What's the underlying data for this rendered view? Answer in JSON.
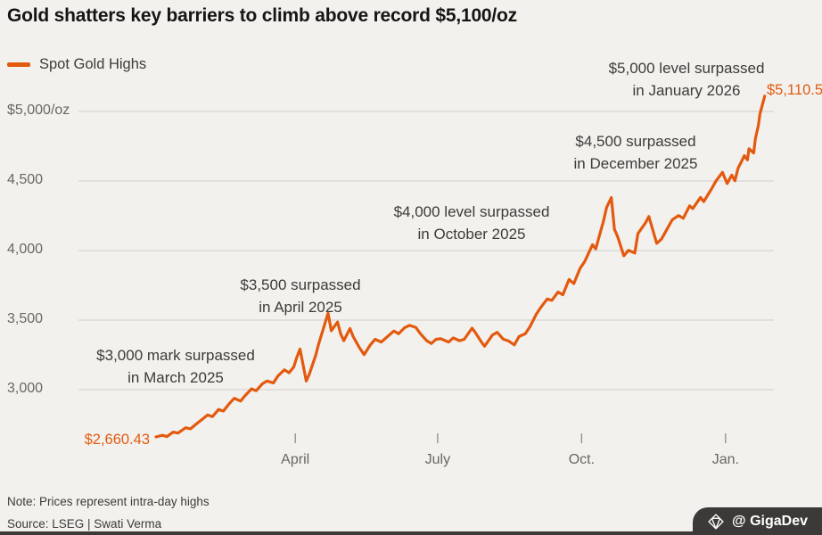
{
  "title": "Gold shatters key barriers to climb above record $5,100/oz",
  "legend": {
    "label": "Spot Gold Highs"
  },
  "colors": {
    "line": "#e35a0f",
    "grid": "#d8d6d2",
    "bg": "#f2f1ee",
    "axis_text": "#696763",
    "annotation_text": "#3d3b38",
    "footer_bg": "#3b3a38",
    "footer_text": "#ffffff"
  },
  "annotations": {
    "start_value": "$2,660.43",
    "end_value": "$5,110.5",
    "milestones": [
      {
        "line1": "$3,000 mark surpassed",
        "line2": "in March 2025"
      },
      {
        "line1": "$3,500 surpassed",
        "line2": "in April 2025"
      },
      {
        "line1": "$4,000 level surpassed",
        "line2": "in October 2025"
      },
      {
        "line1": "$4,500 surpassed",
        "line2": "in December 2025"
      },
      {
        "line1": "$5,000 level surpassed",
        "line2": "in January 2026"
      }
    ]
  },
  "footer": {
    "note": "Note: Prices represent intra-day highs",
    "source": "Source: LSEG | Swati Verma",
    "watermark": "@ GigaDev",
    "watermark_icon": "gem-diamond-icon"
  },
  "chart_data": {
    "type": "line",
    "title": "Gold shatters key barriers to climb above record $5,100/oz",
    "xlabel": "",
    "ylabel": "$/oz",
    "ylim": [
      2600,
      5200
    ],
    "xlim": [
      "2025-01-02",
      "2026-01-26"
    ],
    "grid": "horizontal",
    "legend_position": "top-left",
    "yticks": [
      {
        "label": "$5,000/oz",
        "value": 5000
      },
      {
        "label": "4,500",
        "value": 4500
      },
      {
        "label": "4,000",
        "value": 4000
      },
      {
        "label": "3,500",
        "value": 3500
      },
      {
        "label": "3,000",
        "value": 3000
      }
    ],
    "xticks": [
      {
        "label": "April",
        "date": "2025-04-01"
      },
      {
        "label": "July",
        "date": "2025-07-01"
      },
      {
        "label": "Oct.",
        "date": "2025-10-01"
      },
      {
        "label": "Jan.",
        "date": "2026-01-01"
      }
    ],
    "series": [
      {
        "name": "Spot Gold Highs",
        "color": "#e35a0f",
        "points": [
          [
            "2025-01-02",
            2660.43
          ],
          [
            "2025-01-06",
            2672
          ],
          [
            "2025-01-09",
            2663
          ],
          [
            "2025-01-13",
            2695
          ],
          [
            "2025-01-16",
            2688
          ],
          [
            "2025-01-21",
            2726
          ],
          [
            "2025-01-24",
            2718
          ],
          [
            "2025-01-28",
            2756
          ],
          [
            "2025-01-31",
            2782
          ],
          [
            "2025-02-04",
            2818
          ],
          [
            "2025-02-07",
            2806
          ],
          [
            "2025-02-11",
            2858
          ],
          [
            "2025-02-14",
            2846
          ],
          [
            "2025-02-18",
            2902
          ],
          [
            "2025-02-21",
            2938
          ],
          [
            "2025-02-25",
            2918
          ],
          [
            "2025-02-28",
            2958
          ],
          [
            "2025-03-04",
            3006
          ],
          [
            "2025-03-07",
            2992
          ],
          [
            "2025-03-11",
            3042
          ],
          [
            "2025-03-14",
            3062
          ],
          [
            "2025-03-18",
            3048
          ],
          [
            "2025-03-21",
            3100
          ],
          [
            "2025-03-25",
            3142
          ],
          [
            "2025-03-28",
            3122
          ],
          [
            "2025-03-31",
            3162
          ],
          [
            "2025-04-02",
            3232
          ],
          [
            "2025-04-04",
            3292
          ],
          [
            "2025-04-08",
            3062
          ],
          [
            "2025-04-10",
            3112
          ],
          [
            "2025-04-14",
            3245
          ],
          [
            "2025-04-16",
            3330
          ],
          [
            "2025-04-22",
            3550
          ],
          [
            "2025-04-24",
            3424
          ],
          [
            "2025-04-28",
            3486
          ],
          [
            "2025-04-30",
            3402
          ],
          [
            "2025-05-02",
            3352
          ],
          [
            "2025-05-06",
            3440
          ],
          [
            "2025-05-08",
            3382
          ],
          [
            "2025-05-12",
            3302
          ],
          [
            "2025-05-15",
            3252
          ],
          [
            "2025-05-19",
            3322
          ],
          [
            "2025-05-22",
            3362
          ],
          [
            "2025-05-26",
            3342
          ],
          [
            "2025-05-30",
            3382
          ],
          [
            "2025-06-03",
            3422
          ],
          [
            "2025-06-06",
            3402
          ],
          [
            "2025-06-10",
            3446
          ],
          [
            "2025-06-13",
            3462
          ],
          [
            "2025-06-17",
            3448
          ],
          [
            "2025-06-20",
            3402
          ],
          [
            "2025-06-24",
            3352
          ],
          [
            "2025-06-27",
            3332
          ],
          [
            "2025-06-30",
            3362
          ],
          [
            "2025-07-03",
            3366
          ],
          [
            "2025-07-08",
            3342
          ],
          [
            "2025-07-11",
            3372
          ],
          [
            "2025-07-15",
            3352
          ],
          [
            "2025-07-18",
            3362
          ],
          [
            "2025-07-23",
            3442
          ],
          [
            "2025-07-25",
            3412
          ],
          [
            "2025-07-29",
            3342
          ],
          [
            "2025-07-31",
            3312
          ],
          [
            "2025-08-05",
            3392
          ],
          [
            "2025-08-08",
            3412
          ],
          [
            "2025-08-12",
            3362
          ],
          [
            "2025-08-15",
            3352
          ],
          [
            "2025-08-19",
            3322
          ],
          [
            "2025-08-22",
            3382
          ],
          [
            "2025-08-26",
            3402
          ],
          [
            "2025-08-29",
            3452
          ],
          [
            "2025-09-02",
            3542
          ],
          [
            "2025-09-05",
            3592
          ],
          [
            "2025-09-09",
            3652
          ],
          [
            "2025-09-12",
            3642
          ],
          [
            "2025-09-16",
            3702
          ],
          [
            "2025-09-19",
            3682
          ],
          [
            "2025-09-23",
            3792
          ],
          [
            "2025-09-26",
            3762
          ],
          [
            "2025-09-30",
            3872
          ],
          [
            "2025-10-03",
            3922
          ],
          [
            "2025-10-08",
            4042
          ],
          [
            "2025-10-10",
            4012
          ],
          [
            "2025-10-15",
            4212
          ],
          [
            "2025-10-17",
            4310
          ],
          [
            "2025-10-20",
            4381
          ],
          [
            "2025-10-22",
            4152
          ],
          [
            "2025-10-24",
            4102
          ],
          [
            "2025-10-28",
            3962
          ],
          [
            "2025-10-31",
            4002
          ],
          [
            "2025-11-04",
            3982
          ],
          [
            "2025-11-06",
            4122
          ],
          [
            "2025-11-11",
            4202
          ],
          [
            "2025-11-13",
            4245
          ],
          [
            "2025-11-18",
            4052
          ],
          [
            "2025-11-21",
            4082
          ],
          [
            "2025-11-25",
            4162
          ],
          [
            "2025-11-28",
            4222
          ],
          [
            "2025-12-02",
            4252
          ],
          [
            "2025-12-05",
            4232
          ],
          [
            "2025-12-09",
            4322
          ],
          [
            "2025-12-11",
            4302
          ],
          [
            "2025-12-16",
            4382
          ],
          [
            "2025-12-18",
            4352
          ],
          [
            "2025-12-23",
            4442
          ],
          [
            "2025-12-26",
            4502
          ],
          [
            "2025-12-30",
            4562
          ],
          [
            "2026-01-02",
            4482
          ],
          [
            "2026-01-05",
            4542
          ],
          [
            "2026-01-07",
            4502
          ],
          [
            "2026-01-09",
            4592
          ],
          [
            "2026-01-13",
            4682
          ],
          [
            "2026-01-15",
            4652
          ],
          [
            "2026-01-16",
            4732
          ],
          [
            "2026-01-19",
            4702
          ],
          [
            "2026-01-20",
            4802
          ],
          [
            "2026-01-22",
            4902
          ],
          [
            "2026-01-23",
            4982
          ],
          [
            "2026-01-26",
            5110.5
          ]
        ]
      }
    ]
  }
}
